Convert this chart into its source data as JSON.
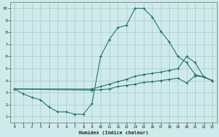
{
  "xlabel": "Humidex (Indice chaleur)",
  "bg_color": "#ceeaea",
  "grid_color": "#b8d8d8",
  "line_color": "#1a6e6e",
  "line1_x": [
    0,
    1,
    2,
    3,
    4,
    5,
    6,
    7,
    8,
    9,
    10,
    11,
    12,
    13,
    14,
    15,
    16,
    17,
    18,
    19,
    20,
    21,
    22,
    23
  ],
  "line1_y": [
    3.3,
    2.9,
    2.6,
    2.4,
    1.8,
    1.4,
    1.4,
    1.2,
    1.2,
    2.1,
    6.0,
    7.4,
    8.4,
    8.6,
    10.0,
    10.0,
    9.3,
    8.1,
    7.2,
    6.0,
    5.5,
    4.5,
    4.3,
    4.0
  ],
  "line2_x": [
    0,
    9,
    10,
    11,
    12,
    13,
    14,
    15,
    16,
    17,
    18,
    19,
    20,
    21,
    22,
    23
  ],
  "line2_y": [
    3.3,
    3.3,
    3.5,
    3.7,
    3.9,
    4.1,
    4.35,
    4.5,
    4.6,
    4.7,
    4.85,
    5.0,
    6.0,
    5.5,
    4.3,
    4.0
  ],
  "line3_x": [
    0,
    9,
    10,
    11,
    12,
    13,
    14,
    15,
    16,
    17,
    18,
    19,
    20,
    21,
    22,
    23
  ],
  "line3_y": [
    3.3,
    3.2,
    3.25,
    3.3,
    3.5,
    3.6,
    3.7,
    3.85,
    3.9,
    4.0,
    4.1,
    4.2,
    3.8,
    4.4,
    4.3,
    4.0
  ],
  "xmin": 0,
  "xmax": 23,
  "ymin": 1,
  "ymax": 10,
  "yticks": [
    1,
    2,
    3,
    4,
    5,
    6,
    7,
    8,
    9,
    10
  ],
  "xticks": [
    0,
    1,
    2,
    3,
    4,
    5,
    6,
    7,
    8,
    9,
    10,
    11,
    12,
    13,
    14,
    15,
    16,
    17,
    18,
    19,
    20,
    21,
    22,
    23
  ]
}
